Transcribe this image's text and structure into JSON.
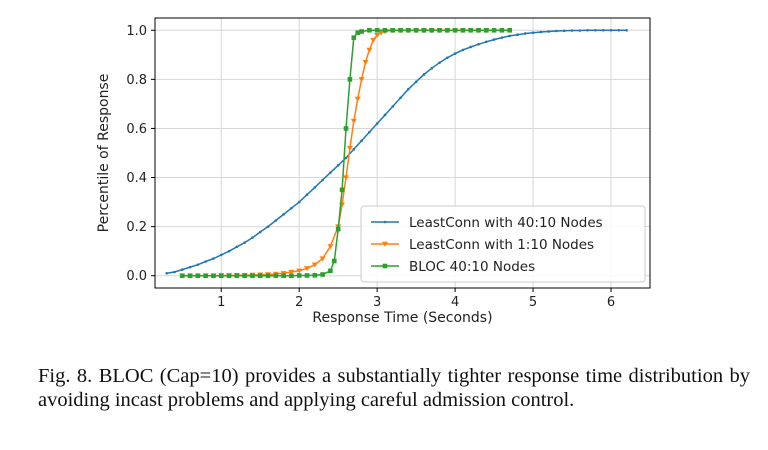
{
  "caption": "Fig. 8.   BLOC (Cap=10) provides a substantially tighter response time distribution by avoiding incast problems and applying careful admission control.",
  "chart_data": {
    "type": "line",
    "title": "",
    "xlabel": "Response Time (Seconds)",
    "ylabel": "Percentile of Response",
    "xlim": [
      0.15,
      6.5
    ],
    "ylim": [
      -0.05,
      1.05
    ],
    "xticks": [
      1,
      2,
      3,
      4,
      5,
      6
    ],
    "xtick_labels": [
      "1",
      "2",
      "3",
      "4",
      "5",
      "6"
    ],
    "yticks": [
      0.0,
      0.2,
      0.4,
      0.6,
      0.8,
      1.0
    ],
    "ytick_labels": [
      "0.0",
      "0.2",
      "0.4",
      "0.6",
      "0.8",
      "1.0"
    ],
    "grid": true,
    "legend_position": "lower-right",
    "series": [
      {
        "name": "LeastConn with 40:10 Nodes",
        "color": "#1f77b4",
        "marker": "dot",
        "x": [
          0.3,
          0.4,
          0.5,
          0.6,
          0.7,
          0.8,
          0.9,
          1.0,
          1.1,
          1.2,
          1.3,
          1.4,
          1.5,
          1.6,
          1.7,
          1.8,
          1.9,
          2.0,
          2.1,
          2.2,
          2.3,
          2.4,
          2.5,
          2.6,
          2.7,
          2.8,
          2.9,
          3.0,
          3.1,
          3.2,
          3.3,
          3.4,
          3.5,
          3.6,
          3.7,
          3.8,
          3.9,
          4.0,
          4.1,
          4.2,
          4.3,
          4.4,
          4.5,
          4.6,
          4.7,
          4.8,
          4.9,
          5.0,
          5.1,
          5.2,
          5.3,
          5.4,
          5.5,
          5.6,
          5.7,
          5.8,
          5.9,
          6.0,
          6.1,
          6.2
        ],
        "y": [
          0.01,
          0.015,
          0.025,
          0.035,
          0.045,
          0.058,
          0.07,
          0.085,
          0.1,
          0.118,
          0.135,
          0.155,
          0.178,
          0.2,
          0.225,
          0.25,
          0.275,
          0.3,
          0.33,
          0.36,
          0.39,
          0.42,
          0.45,
          0.48,
          0.515,
          0.55,
          0.585,
          0.62,
          0.655,
          0.69,
          0.725,
          0.76,
          0.79,
          0.82,
          0.845,
          0.868,
          0.888,
          0.905,
          0.92,
          0.932,
          0.943,
          0.953,
          0.962,
          0.97,
          0.977,
          0.982,
          0.987,
          0.99,
          0.993,
          0.995,
          0.997,
          0.998,
          0.999,
          0.999,
          1.0,
          1.0,
          1.0,
          1.0,
          1.0,
          1.0
        ]
      },
      {
        "name": "LeastConn with 1:10 Nodes",
        "color": "#ff7f0e",
        "marker": "triangle-down",
        "x": [
          0.5,
          0.6,
          0.7,
          0.8,
          0.9,
          1.0,
          1.1,
          1.2,
          1.3,
          1.4,
          1.5,
          1.6,
          1.7,
          1.8,
          1.9,
          2.0,
          2.1,
          2.2,
          2.3,
          2.4,
          2.5,
          2.55,
          2.6,
          2.65,
          2.7,
          2.75,
          2.8,
          2.85,
          2.9,
          2.95,
          3.0,
          3.05,
          3.1,
          3.2,
          3.3,
          3.4,
          3.5,
          3.6,
          3.7,
          3.8,
          3.9,
          4.0,
          4.1,
          4.2,
          4.3,
          4.4
        ],
        "y": [
          0.0,
          0.0,
          0.0,
          0.0,
          0.0,
          0.001,
          0.001,
          0.002,
          0.002,
          0.003,
          0.004,
          0.005,
          0.007,
          0.01,
          0.015,
          0.02,
          0.03,
          0.045,
          0.07,
          0.12,
          0.2,
          0.29,
          0.4,
          0.52,
          0.63,
          0.72,
          0.8,
          0.87,
          0.92,
          0.96,
          0.98,
          0.99,
          0.995,
          1.0,
          1.0,
          1.0,
          1.0,
          1.0,
          1.0,
          1.0,
          1.0,
          1.0,
          1.0,
          1.0,
          1.0,
          1.0
        ]
      },
      {
        "name": "BLOC 40:10 Nodes",
        "color": "#2ca02c",
        "marker": "square",
        "x": [
          0.5,
          0.6,
          0.7,
          0.8,
          0.9,
          1.0,
          1.1,
          1.2,
          1.3,
          1.4,
          1.5,
          1.6,
          1.7,
          1.8,
          1.9,
          2.0,
          2.1,
          2.2,
          2.3,
          2.4,
          2.45,
          2.5,
          2.55,
          2.6,
          2.65,
          2.7,
          2.75,
          2.8,
          2.9,
          3.0,
          3.1,
          3.2,
          3.3,
          3.4,
          3.5,
          3.6,
          3.7,
          3.8,
          3.9,
          4.0,
          4.1,
          4.2,
          4.3,
          4.4,
          4.5,
          4.6,
          4.7
        ],
        "y": [
          0.0,
          0.0,
          0.0,
          0.0,
          0.0,
          0.0,
          0.0,
          0.0,
          0.0,
          0.0,
          0.0,
          0.0,
          0.0,
          0.0,
          0.0,
          0.001,
          0.001,
          0.002,
          0.005,
          0.02,
          0.06,
          0.19,
          0.35,
          0.6,
          0.8,
          0.97,
          0.99,
          0.995,
          1.0,
          1.0,
          1.0,
          1.0,
          1.0,
          1.0,
          1.0,
          1.0,
          1.0,
          1.0,
          1.0,
          1.0,
          1.0,
          1.0,
          1.0,
          1.0,
          1.0,
          1.0,
          1.0
        ]
      }
    ]
  }
}
